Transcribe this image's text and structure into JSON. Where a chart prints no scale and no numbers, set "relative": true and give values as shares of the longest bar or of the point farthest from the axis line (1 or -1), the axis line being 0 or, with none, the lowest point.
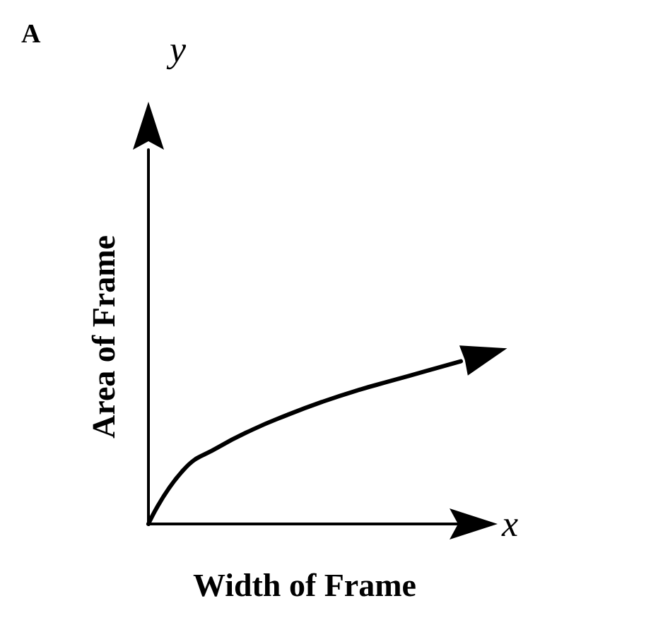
{
  "chart_data": {
    "type": "line",
    "title": "A",
    "xlabel": "Width of Frame",
    "ylabel": "Area of Frame",
    "annotations": [
      "y",
      "x"
    ],
    "relative": true,
    "categories": [
      null,
      null,
      null,
      null,
      null,
      null,
      null,
      null,
      null,
      null
    ],
    "series": [
      {
        "color": "#000000",
        "values": [
          0,
          0.33,
          0.47,
          0.58,
          0.67,
          0.75,
          0.82,
          0.88,
          0.94,
          1
        ]
      }
    ],
    "line_style": "solid"
  }
}
